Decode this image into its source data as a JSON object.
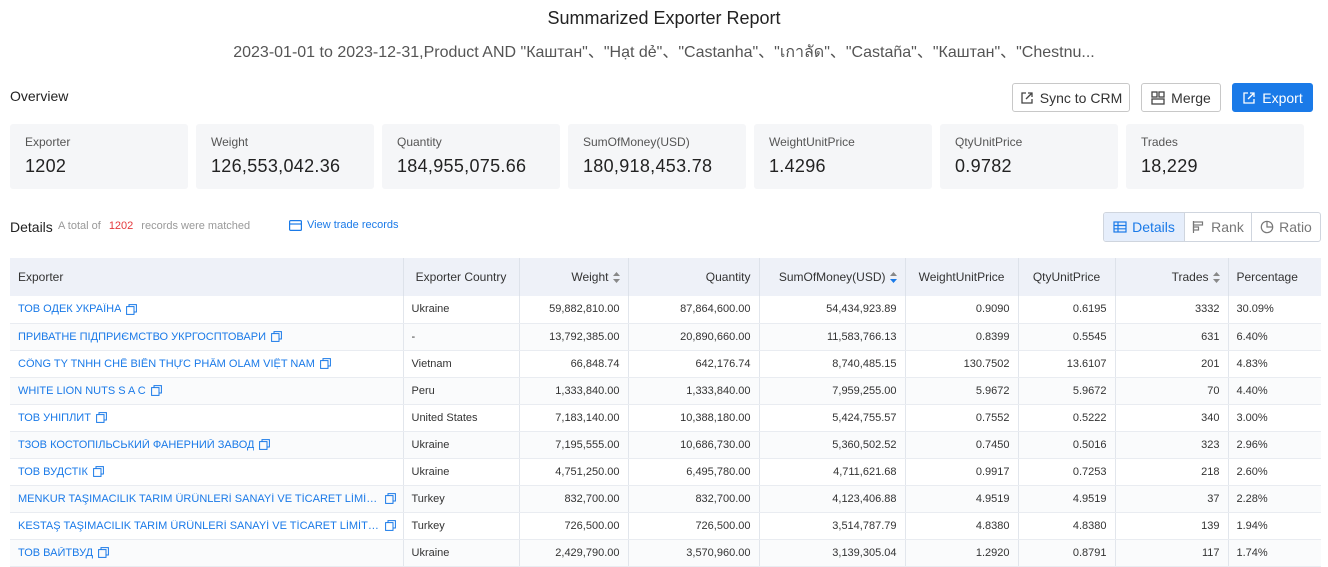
{
  "header": {
    "title": "Summarized Exporter Report",
    "subtitle": "2023-01-01 to 2023-12-31,Product AND \"Каштан\"、\"Hạt dẻ\"、\"Castanha\"、\"เกาลัด\"、\"Castaña\"、\"Каштан\"、\"Chestnu..."
  },
  "overview": {
    "label": "Overview",
    "buttons": {
      "sync": "Sync to CRM",
      "merge": "Merge",
      "export": "Export"
    },
    "stats": [
      {
        "label": "Exporter",
        "value": "1202"
      },
      {
        "label": "Weight",
        "value": "126,553,042.36"
      },
      {
        "label": "Quantity",
        "value": "184,955,075.66"
      },
      {
        "label": "SumOfMoney(USD)",
        "value": "180,918,453.78"
      },
      {
        "label": "WeightUnitPrice",
        "value": "1.4296"
      },
      {
        "label": "QtyUnitPrice",
        "value": "0.9782"
      },
      {
        "label": "Trades",
        "value": "18,229"
      }
    ]
  },
  "details": {
    "label": "Details",
    "matched_prefix": "A total of",
    "matched_count": "1202",
    "matched_suffix": "records were matched",
    "view_records": "View trade records",
    "tabs": {
      "details": "Details",
      "rank": "Rank",
      "ratio": "Ratio"
    }
  },
  "table": {
    "columns": [
      "Exporter",
      "Exporter Country",
      "Weight",
      "Quantity",
      "SumOfMoney(USD)",
      "WeightUnitPrice",
      "QtyUnitPrice",
      "Trades",
      "Percentage"
    ],
    "rows": [
      [
        "ТОВ ОДЕК УКРАЇНА",
        "Ukraine",
        "59,882,810.00",
        "87,864,600.00",
        "54,434,923.89",
        "0.9090",
        "0.6195",
        "3332",
        "30.09%"
      ],
      [
        "ПРИВАТНЕ ПІДПРИЄМСТВО УКРГОСПТОВАРИ",
        "-",
        "13,792,385.00",
        "20,890,660.00",
        "11,583,766.13",
        "0.8399",
        "0.5545",
        "631",
        "6.40%"
      ],
      [
        "CÔNG TY TNHH CHẾ BIẾN THỰC PHẨM OLAM VIỆT NAM",
        "Vietnam",
        "66,848.74",
        "642,176.74",
        "8,740,485.15",
        "130.7502",
        "13.6107",
        "201",
        "4.83%"
      ],
      [
        "WHITE LION NUTS S A C",
        "Peru",
        "1,333,840.00",
        "1,333,840.00",
        "7,959,255.00",
        "5.9672",
        "5.9672",
        "70",
        "4.40%"
      ],
      [
        "ТОВ УНІПЛИТ",
        "United States",
        "7,183,140.00",
        "10,388,180.00",
        "5,424,755.57",
        "0.7552",
        "0.5222",
        "340",
        "3.00%"
      ],
      [
        "ТЗОВ КОСТОПІЛЬСЬКИЙ ФАНЕРНИЙ ЗАВОД",
        "Ukraine",
        "7,195,555.00",
        "10,686,730.00",
        "5,360,502.52",
        "0.7450",
        "0.5016",
        "323",
        "2.96%"
      ],
      [
        "ТОВ ВУДСТІК",
        "Ukraine",
        "4,751,250.00",
        "6,495,780.00",
        "4,711,621.68",
        "0.9917",
        "0.7253",
        "218",
        "2.60%"
      ],
      [
        "MENKUR TAŞIMACILIK TARIM ÜRÜNLERİ SANAYİ VE TİCARET LİMİTE...",
        "Turkey",
        "832,700.00",
        "832,700.00",
        "4,123,406.88",
        "4.9519",
        "4.9519",
        "37",
        "2.28%"
      ],
      [
        "KESTAŞ TAŞIMACILIK TARIM ÜRÜNLERİ SANAYİ VE TİCARET LİMİTED...",
        "Turkey",
        "726,500.00",
        "726,500.00",
        "3,514,787.79",
        "4.8380",
        "4.8380",
        "139",
        "1.94%"
      ],
      [
        "ТОВ ВАЙТВУД",
        "Ukraine",
        "2,429,790.00",
        "3,570,960.00",
        "3,139,305.04",
        "1.2920",
        "0.8791",
        "117",
        "1.74%"
      ]
    ]
  },
  "colors": {
    "accent": "#1a7ae8",
    "count_red": "#e4393c",
    "header_bg": "#eef1f8"
  }
}
